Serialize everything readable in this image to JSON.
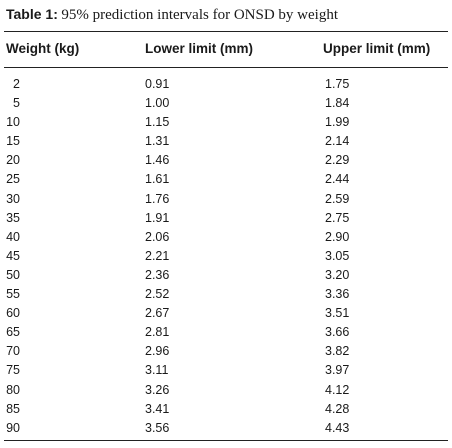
{
  "caption": {
    "label": "Table 1:",
    "text": "95% prediction intervals for ONSD by weight"
  },
  "table": {
    "headers": [
      "Weight (kg)",
      "Lower limit (mm)",
      "Upper limit (mm)"
    ],
    "rows": [
      [
        "2",
        "0.91",
        "1.75"
      ],
      [
        "5",
        "1.00",
        "1.84"
      ],
      [
        "10",
        "1.15",
        "1.99"
      ],
      [
        "15",
        "1.31",
        "2.14"
      ],
      [
        "20",
        "1.46",
        "2.29"
      ],
      [
        "25",
        "1.61",
        "2.44"
      ],
      [
        "30",
        "1.76",
        "2.59"
      ],
      [
        "35",
        "1.91",
        "2.75"
      ],
      [
        "40",
        "2.06",
        "2.90"
      ],
      [
        "45",
        "2.21",
        "3.05"
      ],
      [
        "50",
        "2.36",
        "3.20"
      ],
      [
        "55",
        "2.52",
        "3.36"
      ],
      [
        "60",
        "2.67",
        "3.51"
      ],
      [
        "65",
        "2.81",
        "3.66"
      ],
      [
        "70",
        "2.96",
        "3.82"
      ],
      [
        "75",
        "3.11",
        "3.97"
      ],
      [
        "80",
        "3.26",
        "4.12"
      ],
      [
        "85",
        "3.41",
        "4.28"
      ],
      [
        "90",
        "3.56",
        "4.43"
      ]
    ]
  }
}
